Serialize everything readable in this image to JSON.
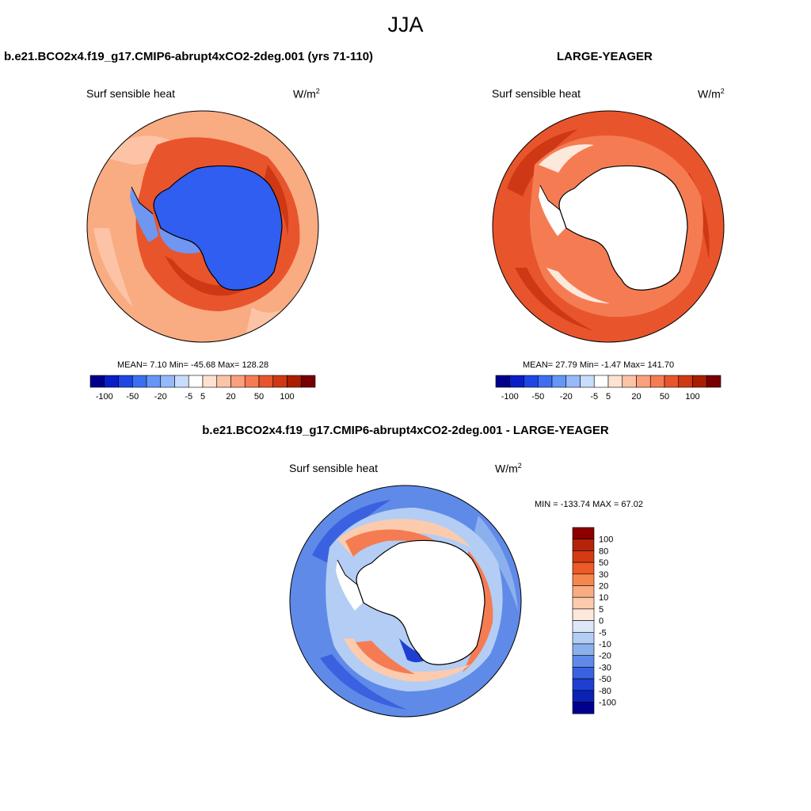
{
  "figure": {
    "season": "JJA"
  },
  "panels": {
    "top_left": {
      "title": "b.e21.BCO2x4.f19_g17.CMIP6-abrupt4xCO2-2deg.001 (yrs 71-110)",
      "variable": "Surf sensible heat",
      "units_base": "W/m",
      "units_exp": "2",
      "stats": "MEAN=   7.10  Min= -45.68  Max= 128.28"
    },
    "top_right": {
      "title": "LARGE-YEAGER",
      "variable": "Surf sensible heat",
      "units_base": "W/m",
      "units_exp": "2",
      "stats": "MEAN=  27.79  Min=  -1.47  Max= 141.70"
    },
    "bottom": {
      "title": "b.e21.BCO2x4.f19_g17.CMIP6-abrupt4xCO2-2deg.001 - LARGE-YEAGER",
      "variable": "Surf sensible heat",
      "units_base": "W/m",
      "units_exp": "2",
      "stats": "MIN = -133.74 MAX =  67.02"
    }
  },
  "colorbar_top": {
    "labels": [
      "-100",
      "-50",
      "-20",
      "-5",
      "5",
      "20",
      "50",
      "100"
    ],
    "colors": [
      "#00008c",
      "#0a1ec8",
      "#1e46e6",
      "#3c6ef0",
      "#6496f5",
      "#96b9fa",
      "#c8dcfc",
      "#ffffff",
      "#fde2d2",
      "#fcc3a6",
      "#faa07c",
      "#f57c52",
      "#e8552c",
      "#cf3814",
      "#aa1e00",
      "#780000"
    ]
  },
  "colorbar_bottom": {
    "labels": [
      "100",
      "80",
      "50",
      "30",
      "20",
      "10",
      "5",
      "0",
      "-5",
      "-10",
      "-20",
      "-30",
      "-50",
      "-80",
      "-100"
    ],
    "colors": [
      "#8c0000",
      "#b4230a",
      "#d53b12",
      "#ee5a28",
      "#f5874e",
      "#f9ab82",
      "#fccbae",
      "#fde8dc",
      "#dce8f8",
      "#b4cdf4",
      "#8cb0ee",
      "#5f8ae8",
      "#3a62e0",
      "#1f3fd2",
      "#0c22b4",
      "#00008c"
    ]
  },
  "maps": {
    "top_left": {
      "ocean": "#f9ab82",
      "ring": "#e8552c",
      "ring_dark": "#cf3814",
      "ice": "#2f5ef0",
      "ice_light": "#6f97f2"
    },
    "top_right": {
      "ocean": "#e8552c",
      "ring": "#f57c52",
      "ring_light": "#fde8dc",
      "land": "#ffffff"
    },
    "bottom": {
      "ocean": "#5f8ae8",
      "mid": "#b4cdf4",
      "warm": "#f57c52",
      "warm_light": "#fccbae",
      "land": "#ffffff"
    }
  }
}
